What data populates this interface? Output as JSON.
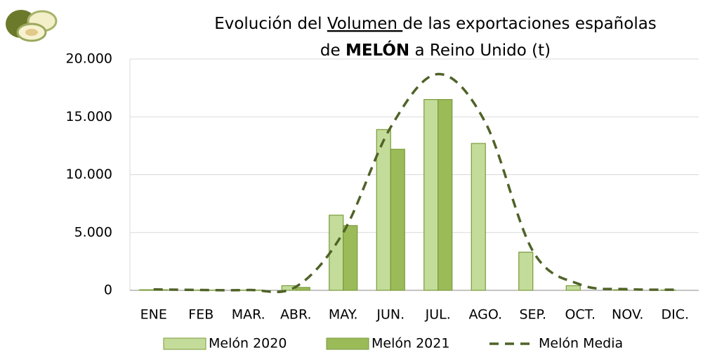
{
  "chart_data": {
    "type": "bar",
    "title": {
      "line1": [
        "Evolución del ",
        "Volumen ",
        "de las exportaciones españolas"
      ],
      "line2": [
        "de ",
        "MELÓN",
        " a Reino Unido (t)"
      ]
    },
    "categories": [
      "ENE",
      "FEB",
      "MAR.",
      "ABR.",
      "MAY.",
      "JUN.",
      "JUL.",
      "AGO.",
      "SEP.",
      "OCT.",
      "NOV.",
      "DIC."
    ],
    "series": [
      {
        "name": "Melón 2020",
        "type": "bar",
        "color": "#c4dc9a",
        "values": [
          50,
          20,
          20,
          400,
          6500,
          13900,
          16500,
          12700,
          3300,
          400,
          50,
          30
        ]
      },
      {
        "name": "Melón 2021",
        "type": "bar",
        "color": "#9bbb59",
        "values": [
          50,
          20,
          20,
          250,
          5600,
          12200,
          16500,
          null,
          null,
          null,
          null,
          null
        ]
      },
      {
        "name": "Melón Media",
        "type": "line",
        "color": "#4f6228",
        "values": [
          80,
          30,
          30,
          300,
          5000,
          14100,
          18700,
          14500,
          3400,
          500,
          100,
          50
        ]
      }
    ],
    "ylim": [
      0,
      20000
    ],
    "yticks": [
      0,
      {
        "value": 5000,
        "label": "5.000"
      },
      {
        "value": 10000,
        "label": "10.000"
      },
      {
        "value": 15000,
        "label": "15.000"
      },
      {
        "value": 20000,
        "label": "20.000"
      }
    ],
    "grid": true,
    "legend": "bottom"
  }
}
